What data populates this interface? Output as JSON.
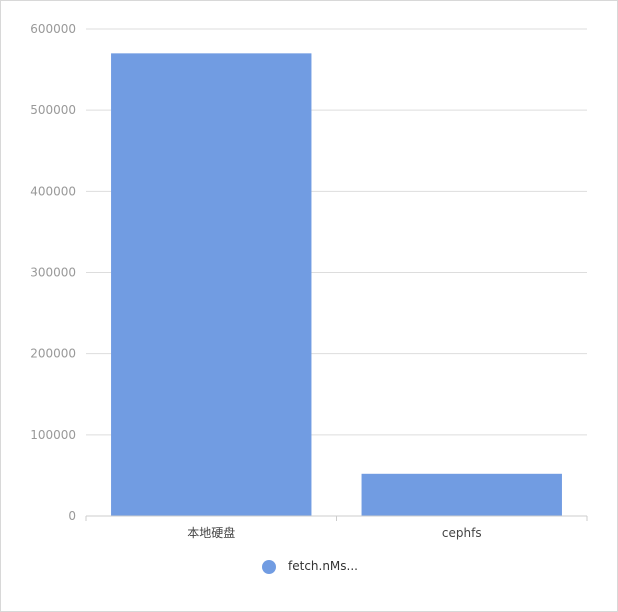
{
  "chart_data": {
    "type": "bar",
    "categories": [
      "本地硬盘",
      "cephfs"
    ],
    "series": [
      {
        "name": "fetch.nMs...",
        "values": [
          570000,
          52000
        ]
      }
    ],
    "title": "",
    "xlabel": "",
    "ylabel": "",
    "ylim": [
      0,
      600000
    ],
    "yticks": [
      "0",
      "100000",
      "200000",
      "300000",
      "400000",
      "500000",
      "600000"
    ],
    "grid": true,
    "legend_position": "bottom",
    "colors": {
      "bar": "#719ce2",
      "grid": "#dddddd",
      "axis": "#cccccc"
    }
  }
}
